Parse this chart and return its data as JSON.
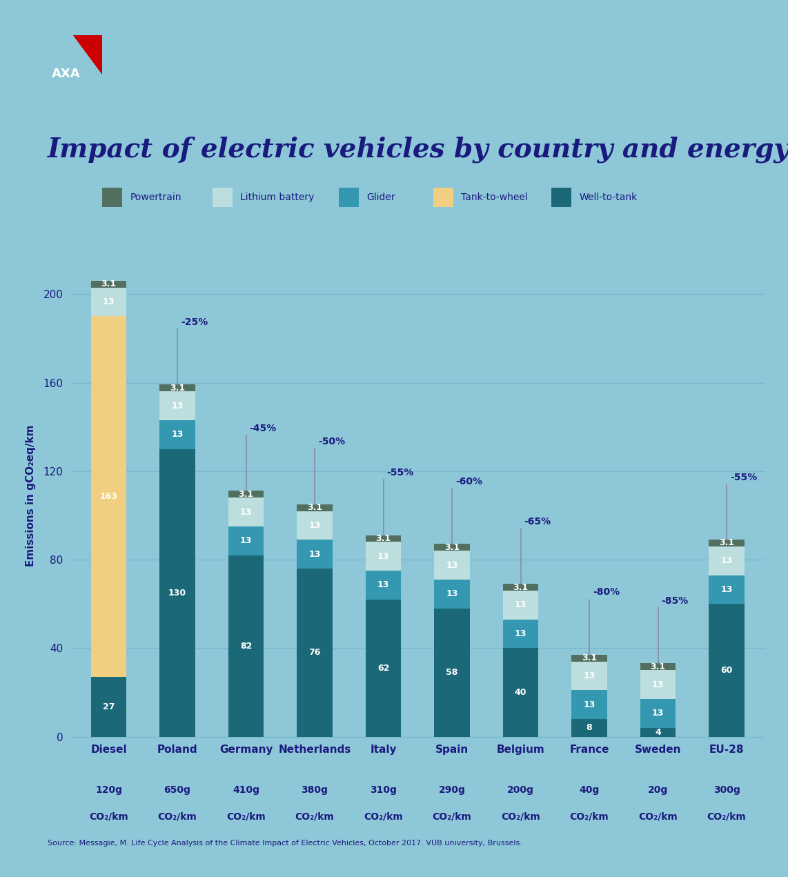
{
  "background_color": "#8ec8d8",
  "title": "Impact of electric vehicles by country and energy mix",
  "title_color": "#1a1a7e",
  "title_fontsize": 28,
  "ylabel": "Emissions in gCO₂eq/km",
  "ylabel_color": "#1a1a7e",
  "source": "Source: Messagie, M. Life Cycle Analysis of the Climate Impact of Electric Vehicles, October 2017. VUB university, Brussels.",
  "categories": [
    "Diesel",
    "Poland",
    "Germany",
    "Netherlands",
    "Italy",
    "Spain",
    "Belgium",
    "France",
    "Sweden",
    "EU-28"
  ],
  "co2_line1": [
    "120g",
    "650g",
    "410g",
    "380g",
    "310g",
    "290g",
    "200g",
    "40g",
    "20g",
    "300g"
  ],
  "co2_line2": [
    "CO₂/km",
    "CO₂/km",
    "CO₂/km",
    "CO₂/km",
    "CO₂/km",
    "CO₂/km",
    "CO₂/km",
    "CO₂/km",
    "CO₂/km",
    "CO₂/km"
  ],
  "legend_labels": [
    "Powertrain",
    "Lithium battery",
    "Glider",
    "Tank-to-wheel",
    "Well-to-tank"
  ],
  "legend_colors": [
    "#527060",
    "#bcdede",
    "#3498b0",
    "#f0d080",
    "#1a6878"
  ],
  "colors": {
    "powertrain": "#527060",
    "lithium": "#bcdede",
    "glider": "#3498b0",
    "tank_to_wheel": "#f0d080",
    "well_to_tank": "#1a6878"
  },
  "stack_data": {
    "well_to_tank": [
      27,
      130,
      82,
      76,
      62,
      58,
      40,
      8,
      4,
      60
    ],
    "tank_to_wheel": [
      163,
      0,
      0,
      0,
      0,
      0,
      0,
      0,
      0,
      0
    ],
    "glider": [
      0,
      13,
      13,
      13,
      13,
      13,
      13,
      13,
      13,
      13
    ],
    "lithium": [
      13,
      13,
      13,
      13,
      13,
      13,
      13,
      13,
      13,
      13
    ],
    "powertrain": [
      3.1,
      3.1,
      3.1,
      3.1,
      3.1,
      3.1,
      3.1,
      3.1,
      3.1,
      3.1
    ]
  },
  "bar_labels": {
    "well_to_tank": [
      "27",
      "130",
      "82",
      "76",
      "62",
      "58",
      "40",
      "8",
      "4",
      "60"
    ],
    "tank_to_wheel": [
      "163",
      "",
      "",
      "",
      "",
      "",
      "",
      "",
      "",
      ""
    ],
    "glider": [
      "",
      "13",
      "13",
      "13",
      "13",
      "13",
      "13",
      "13",
      "13",
      "13"
    ],
    "lithium": [
      "13",
      "13",
      "13",
      "13",
      "13",
      "13",
      "13",
      "13",
      "13",
      "13"
    ],
    "powertrain": [
      "3.1",
      "3.1",
      "3.1",
      "3.1",
      "3.1",
      "3.1",
      "3.1",
      "3.1",
      "3.1",
      "3.1"
    ]
  },
  "percent_labels": [
    "",
    "-25%",
    "-45%",
    "-50%",
    "-55%",
    "-60%",
    "-65%",
    "-80%",
    "-85%",
    "-55%"
  ],
  "diesel_total": 206.1,
  "ylim": [
    0,
    218
  ],
  "yticks": [
    0,
    40,
    80,
    120,
    160,
    200
  ],
  "grid_color": "#78b8cc",
  "bar_width": 0.52,
  "axis_color": "#1a1a7e",
  "tick_color": "#1a1a7e",
  "label_text_color": "white"
}
